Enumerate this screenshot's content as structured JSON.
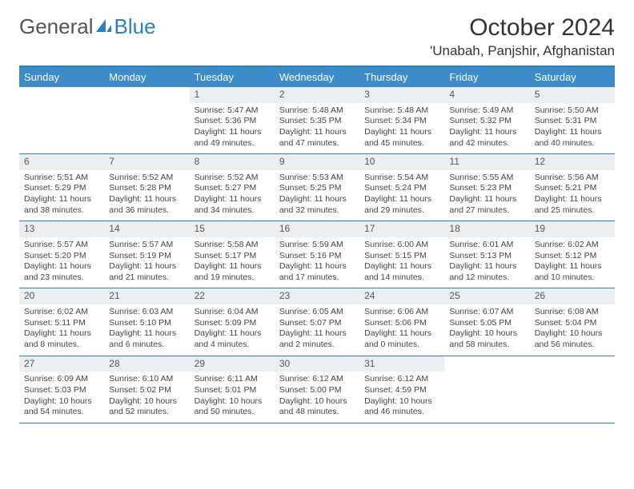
{
  "logo": {
    "text1": "General",
    "text2": "Blue"
  },
  "title": "October 2024",
  "location": "'Unabah, Panjshir, Afghanistan",
  "day_headers": [
    "Sunday",
    "Monday",
    "Tuesday",
    "Wednesday",
    "Thursday",
    "Friday",
    "Saturday"
  ],
  "colors": {
    "header_bar": "#3b8cc9",
    "rule": "#2b7fc3",
    "daynum_bg": "#eceff1"
  },
  "weeks": [
    [
      {
        "n": "",
        "sr": "",
        "ss": "",
        "dl": ""
      },
      {
        "n": "",
        "sr": "",
        "ss": "",
        "dl": ""
      },
      {
        "n": "1",
        "sr": "Sunrise: 5:47 AM",
        "ss": "Sunset: 5:36 PM",
        "dl": "Daylight: 11 hours and 49 minutes."
      },
      {
        "n": "2",
        "sr": "Sunrise: 5:48 AM",
        "ss": "Sunset: 5:35 PM",
        "dl": "Daylight: 11 hours and 47 minutes."
      },
      {
        "n": "3",
        "sr": "Sunrise: 5:48 AM",
        "ss": "Sunset: 5:34 PM",
        "dl": "Daylight: 11 hours and 45 minutes."
      },
      {
        "n": "4",
        "sr": "Sunrise: 5:49 AM",
        "ss": "Sunset: 5:32 PM",
        "dl": "Daylight: 11 hours and 42 minutes."
      },
      {
        "n": "5",
        "sr": "Sunrise: 5:50 AM",
        "ss": "Sunset: 5:31 PM",
        "dl": "Daylight: 11 hours and 40 minutes."
      }
    ],
    [
      {
        "n": "6",
        "sr": "Sunrise: 5:51 AM",
        "ss": "Sunset: 5:29 PM",
        "dl": "Daylight: 11 hours and 38 minutes."
      },
      {
        "n": "7",
        "sr": "Sunrise: 5:52 AM",
        "ss": "Sunset: 5:28 PM",
        "dl": "Daylight: 11 hours and 36 minutes."
      },
      {
        "n": "8",
        "sr": "Sunrise: 5:52 AM",
        "ss": "Sunset: 5:27 PM",
        "dl": "Daylight: 11 hours and 34 minutes."
      },
      {
        "n": "9",
        "sr": "Sunrise: 5:53 AM",
        "ss": "Sunset: 5:25 PM",
        "dl": "Daylight: 11 hours and 32 minutes."
      },
      {
        "n": "10",
        "sr": "Sunrise: 5:54 AM",
        "ss": "Sunset: 5:24 PM",
        "dl": "Daylight: 11 hours and 29 minutes."
      },
      {
        "n": "11",
        "sr": "Sunrise: 5:55 AM",
        "ss": "Sunset: 5:23 PM",
        "dl": "Daylight: 11 hours and 27 minutes."
      },
      {
        "n": "12",
        "sr": "Sunrise: 5:56 AM",
        "ss": "Sunset: 5:21 PM",
        "dl": "Daylight: 11 hours and 25 minutes."
      }
    ],
    [
      {
        "n": "13",
        "sr": "Sunrise: 5:57 AM",
        "ss": "Sunset: 5:20 PM",
        "dl": "Daylight: 11 hours and 23 minutes."
      },
      {
        "n": "14",
        "sr": "Sunrise: 5:57 AM",
        "ss": "Sunset: 5:19 PM",
        "dl": "Daylight: 11 hours and 21 minutes."
      },
      {
        "n": "15",
        "sr": "Sunrise: 5:58 AM",
        "ss": "Sunset: 5:17 PM",
        "dl": "Daylight: 11 hours and 19 minutes."
      },
      {
        "n": "16",
        "sr": "Sunrise: 5:59 AM",
        "ss": "Sunset: 5:16 PM",
        "dl": "Daylight: 11 hours and 17 minutes."
      },
      {
        "n": "17",
        "sr": "Sunrise: 6:00 AM",
        "ss": "Sunset: 5:15 PM",
        "dl": "Daylight: 11 hours and 14 minutes."
      },
      {
        "n": "18",
        "sr": "Sunrise: 6:01 AM",
        "ss": "Sunset: 5:13 PM",
        "dl": "Daylight: 11 hours and 12 minutes."
      },
      {
        "n": "19",
        "sr": "Sunrise: 6:02 AM",
        "ss": "Sunset: 5:12 PM",
        "dl": "Daylight: 11 hours and 10 minutes."
      }
    ],
    [
      {
        "n": "20",
        "sr": "Sunrise: 6:02 AM",
        "ss": "Sunset: 5:11 PM",
        "dl": "Daylight: 11 hours and 8 minutes."
      },
      {
        "n": "21",
        "sr": "Sunrise: 6:03 AM",
        "ss": "Sunset: 5:10 PM",
        "dl": "Daylight: 11 hours and 6 minutes."
      },
      {
        "n": "22",
        "sr": "Sunrise: 6:04 AM",
        "ss": "Sunset: 5:09 PM",
        "dl": "Daylight: 11 hours and 4 minutes."
      },
      {
        "n": "23",
        "sr": "Sunrise: 6:05 AM",
        "ss": "Sunset: 5:07 PM",
        "dl": "Daylight: 11 hours and 2 minutes."
      },
      {
        "n": "24",
        "sr": "Sunrise: 6:06 AM",
        "ss": "Sunset: 5:06 PM",
        "dl": "Daylight: 11 hours and 0 minutes."
      },
      {
        "n": "25",
        "sr": "Sunrise: 6:07 AM",
        "ss": "Sunset: 5:05 PM",
        "dl": "Daylight: 10 hours and 58 minutes."
      },
      {
        "n": "26",
        "sr": "Sunrise: 6:08 AM",
        "ss": "Sunset: 5:04 PM",
        "dl": "Daylight: 10 hours and 56 minutes."
      }
    ],
    [
      {
        "n": "27",
        "sr": "Sunrise: 6:09 AM",
        "ss": "Sunset: 5:03 PM",
        "dl": "Daylight: 10 hours and 54 minutes."
      },
      {
        "n": "28",
        "sr": "Sunrise: 6:10 AM",
        "ss": "Sunset: 5:02 PM",
        "dl": "Daylight: 10 hours and 52 minutes."
      },
      {
        "n": "29",
        "sr": "Sunrise: 6:11 AM",
        "ss": "Sunset: 5:01 PM",
        "dl": "Daylight: 10 hours and 50 minutes."
      },
      {
        "n": "30",
        "sr": "Sunrise: 6:12 AM",
        "ss": "Sunset: 5:00 PM",
        "dl": "Daylight: 10 hours and 48 minutes."
      },
      {
        "n": "31",
        "sr": "Sunrise: 6:12 AM",
        "ss": "Sunset: 4:59 PM",
        "dl": "Daylight: 10 hours and 46 minutes."
      },
      {
        "n": "",
        "sr": "",
        "ss": "",
        "dl": ""
      },
      {
        "n": "",
        "sr": "",
        "ss": "",
        "dl": ""
      }
    ]
  ]
}
